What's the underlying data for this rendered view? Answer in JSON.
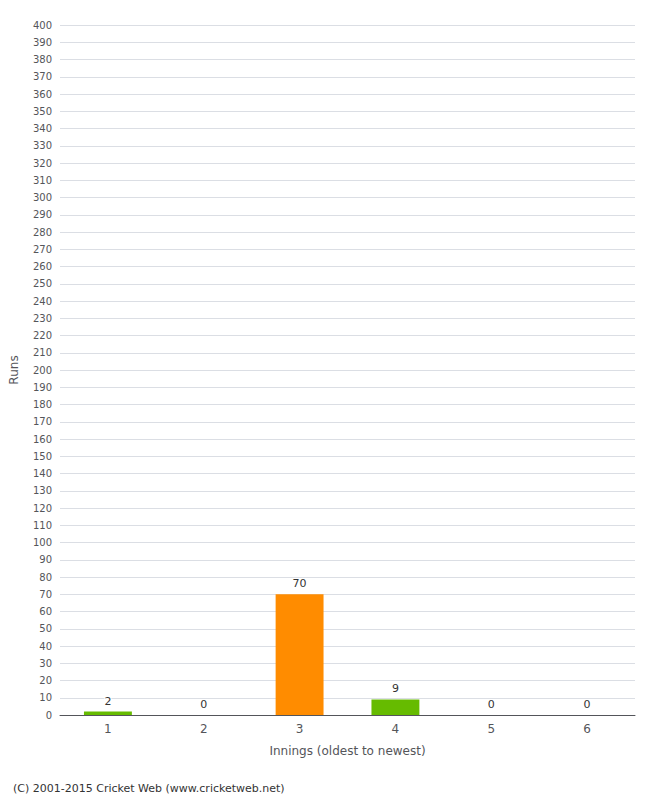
{
  "chart_data": {
    "type": "bar",
    "xlabel": "Innings (oldest to newest)",
    "ylabel": "Runs",
    "categories": [
      "1",
      "2",
      "3",
      "4",
      "5",
      "6"
    ],
    "values": [
      2,
      0,
      70,
      9,
      0,
      0
    ],
    "colors": [
      "#66bb00",
      "#66bb00",
      "#ff8c00",
      "#66bb00",
      "#66bb00",
      "#66bb00"
    ],
    "ylim": [
      0,
      400
    ],
    "yticks": [
      0,
      10,
      20,
      30,
      40,
      50,
      60,
      70,
      80,
      90,
      100,
      110,
      120,
      130,
      140,
      150,
      160,
      170,
      180,
      190,
      200,
      210,
      220,
      230,
      240,
      250,
      260,
      270,
      280,
      290,
      300,
      310,
      320,
      330,
      340,
      350,
      360,
      370,
      380,
      390,
      400
    ],
    "grid": true,
    "data_labels": true,
    "annotations": [
      "(C) 2001-2015 Cricket Web (www.cricketweb.net)"
    ]
  }
}
